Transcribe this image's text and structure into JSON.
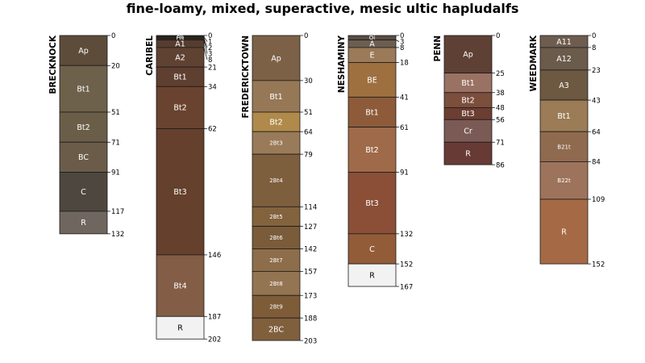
{
  "chart_data": {
    "type": "soil-profile-sketch",
    "title": "fine-loamy, mixed, superactive, mesic ultic hapludalfs",
    "depth_units": "cm",
    "profiles": [
      {
        "name": "BRECKNOCK",
        "max_depth": 132,
        "horizons": [
          {
            "name": "Ap",
            "top": 0,
            "bottom": 20,
            "color": "#5e4c3a"
          },
          {
            "name": "Bt1",
            "top": 20,
            "bottom": 51,
            "color": "#6d614b"
          },
          {
            "name": "Bt2",
            "top": 51,
            "bottom": 71,
            "color": "#6a5e48"
          },
          {
            "name": "BC",
            "top": 71,
            "bottom": 91,
            "color": "#6b5c4a"
          },
          {
            "name": "C",
            "top": 91,
            "bottom": 117,
            "color": "#4d473f"
          },
          {
            "name": "R",
            "top": 117,
            "bottom": 132,
            "color": "#6f675f"
          }
        ]
      },
      {
        "name": "CARIBEL",
        "max_depth": 202,
        "horizons": [
          {
            "name": "Oi",
            "top": 0,
            "bottom": 1,
            "color": "#2e231b"
          },
          {
            "name": "Oe",
            "top": 1,
            "bottom": 2,
            "color": "#3a2b21"
          },
          {
            "name": "Oa",
            "top": 2,
            "bottom": 3,
            "color": "#402e23"
          },
          {
            "name": "A1",
            "top": 3,
            "bottom": 8,
            "color": "#573d2f"
          },
          {
            "name": "A2",
            "top": 8,
            "bottom": 21,
            "color": "#5f4232"
          },
          {
            "name": "Bt1",
            "top": 21,
            "bottom": 34,
            "color": "#5f3f2f"
          },
          {
            "name": "Bt2",
            "top": 34,
            "bottom": 62,
            "color": "#6a4330"
          },
          {
            "name": "Bt3",
            "top": 62,
            "bottom": 146,
            "color": "#65402c"
          },
          {
            "name": "Bt4",
            "top": 146,
            "bottom": 187,
            "color": "#835d46"
          },
          {
            "name": "R",
            "top": 187,
            "bottom": 202,
            "color": "#f2f2f2"
          }
        ]
      },
      {
        "name": "FREDERICKTOWN",
        "max_depth": 203,
        "horizons": [
          {
            "name": "Ap",
            "top": 0,
            "bottom": 30,
            "color": "#7c6147"
          },
          {
            "name": "Bt1",
            "top": 30,
            "bottom": 51,
            "color": "#977856"
          },
          {
            "name": "Bt2",
            "top": 51,
            "bottom": 64,
            "color": "#b08a4a"
          },
          {
            "name": "2Bt3",
            "top": 64,
            "bottom": 79,
            "color": "#9a7b59"
          },
          {
            "name": "2Bt4",
            "top": 79,
            "bottom": 114,
            "color": "#7e5f3d"
          },
          {
            "name": "2Bt5",
            "top": 114,
            "bottom": 127,
            "color": "#82633e"
          },
          {
            "name": "2Bt6",
            "top": 127,
            "bottom": 142,
            "color": "#7a5c3a"
          },
          {
            "name": "2Bt7",
            "top": 142,
            "bottom": 157,
            "color": "#8d6d4a"
          },
          {
            "name": "2Bt8",
            "top": 157,
            "bottom": 173,
            "color": "#947552"
          },
          {
            "name": "2Bt9",
            "top": 173,
            "bottom": 188,
            "color": "#7e5c38"
          },
          {
            "name": "2BC",
            "top": 188,
            "bottom": 203,
            "color": "#805f3c"
          }
        ]
      },
      {
        "name": "NESHAMINY",
        "max_depth": 167,
        "horizons": [
          {
            "name": "Oi",
            "top": 0,
            "bottom": 3,
            "color": "#5a4c41"
          },
          {
            "name": "A",
            "top": 3,
            "bottom": 8,
            "color": "#6d5e52"
          },
          {
            "name": "E",
            "top": 8,
            "bottom": 18,
            "color": "#9a7a58"
          },
          {
            "name": "BE",
            "top": 18,
            "bottom": 41,
            "color": "#9e7040"
          },
          {
            "name": "Bt1",
            "top": 41,
            "bottom": 61,
            "color": "#8e5b3a"
          },
          {
            "name": "Bt2",
            "top": 61,
            "bottom": 91,
            "color": "#9f6a49"
          },
          {
            "name": "Bt3",
            "top": 91,
            "bottom": 132,
            "color": "#8a4f36"
          },
          {
            "name": "C",
            "top": 132,
            "bottom": 152,
            "color": "#935c38"
          },
          {
            "name": "R",
            "top": 152,
            "bottom": 167,
            "color": "#f2f2f2"
          }
        ]
      },
      {
        "name": "PENN",
        "max_depth": 86,
        "horizons": [
          {
            "name": "Ap",
            "top": 0,
            "bottom": 25,
            "color": "#5f4034"
          },
          {
            "name": "Bt1",
            "top": 25,
            "bottom": 38,
            "color": "#9a7263"
          },
          {
            "name": "Bt2",
            "top": 38,
            "bottom": 48,
            "color": "#7c4e3c"
          },
          {
            "name": "Bt3",
            "top": 48,
            "bottom": 56,
            "color": "#6b3e31"
          },
          {
            "name": "Cr",
            "top": 56,
            "bottom": 71,
            "color": "#7b5a55"
          },
          {
            "name": "R",
            "top": 71,
            "bottom": 86,
            "color": "#673a35"
          }
        ]
      },
      {
        "name": "WEEDMARK",
        "max_depth": 152,
        "horizons": [
          {
            "name": "A11",
            "top": 0,
            "bottom": 8,
            "color": "#6e5d4f"
          },
          {
            "name": "A12",
            "top": 8,
            "bottom": 23,
            "color": "#6b5b4b"
          },
          {
            "name": "A3",
            "top": 23,
            "bottom": 43,
            "color": "#6d5841"
          },
          {
            "name": "Bt1",
            "top": 43,
            "bottom": 64,
            "color": "#9b7c56"
          },
          {
            "name": "B21t",
            "top": 64,
            "bottom": 84,
            "color": "#906a4f"
          },
          {
            "name": "B22t",
            "top": 84,
            "bottom": 109,
            "color": "#9e735b"
          },
          {
            "name": "R",
            "top": 109,
            "bottom": 152,
            "color": "#a56a45"
          }
        ]
      }
    ]
  }
}
